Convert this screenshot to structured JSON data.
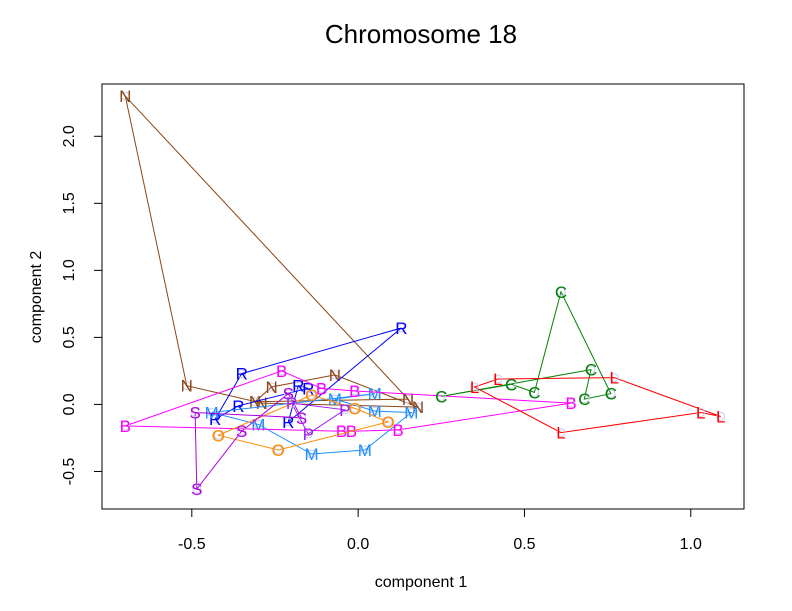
{
  "chart_data": {
    "type": "scatter",
    "title": "Chromosome 18",
    "xlabel": "component 1",
    "ylabel": "component 2",
    "xlim": [
      -0.77,
      1.16
    ],
    "ylim": [
      -0.78,
      2.39
    ],
    "xticks": [
      -0.5,
      0.0,
      0.5,
      1.0
    ],
    "xtick_labels": [
      "-0.5",
      "0.0",
      "0.5",
      "1.0"
    ],
    "yticks": [
      -0.5,
      0.0,
      0.5,
      1.0,
      1.5,
      2.0
    ],
    "ytick_labels": [
      "-0.5",
      "0.0",
      "0.5",
      "1.0",
      "1.5",
      "2.0"
    ],
    "grid": false,
    "legend": "none",
    "series": [
      {
        "name": "N",
        "color": "#8B4513",
        "closed": true,
        "points": [
          [
            -0.7,
            2.3
          ],
          [
            -0.515,
            0.14
          ],
          [
            -0.29,
            0.01
          ],
          [
            0.18,
            -0.02
          ],
          [
            -0.07,
            0.22
          ],
          [
            -0.26,
            0.13
          ],
          [
            -0.31,
            0.02
          ],
          [
            0.15,
            0.04
          ]
        ]
      },
      {
        "name": "R",
        "color": "#0000FF",
        "closed": true,
        "points": [
          [
            -0.35,
            0.23
          ],
          [
            0.13,
            0.57
          ],
          [
            -0.21,
            -0.13
          ],
          [
            -0.18,
            0.14
          ],
          [
            -0.15,
            0.12
          ],
          [
            -0.36,
            -0.01
          ],
          [
            -0.43,
            -0.11
          ]
        ]
      },
      {
        "name": "M",
        "color": "#1E90FF",
        "closed": true,
        "points": [
          [
            -0.44,
            -0.06
          ],
          [
            -0.3,
            -0.15
          ],
          [
            -0.14,
            -0.37
          ],
          [
            0.02,
            -0.34
          ],
          [
            0.16,
            -0.06
          ],
          [
            0.05,
            -0.05
          ],
          [
            -0.07,
            0.04
          ],
          [
            0.05,
            0.08
          ]
        ]
      },
      {
        "name": "B",
        "color": "#FF00FF",
        "closed": true,
        "points": [
          [
            -0.7,
            -0.16
          ],
          [
            -0.23,
            0.25
          ],
          [
            -0.11,
            0.12
          ],
          [
            -0.01,
            0.1
          ],
          [
            0.64,
            0.01
          ],
          [
            0.12,
            -0.19
          ],
          [
            -0.02,
            -0.2
          ],
          [
            -0.05,
            -0.2
          ]
        ]
      },
      {
        "name": "O",
        "color": "#FF8C00",
        "closed": true,
        "points": [
          [
            -0.42,
            -0.23
          ],
          [
            -0.24,
            -0.34
          ],
          [
            0.09,
            -0.13
          ],
          [
            -0.01,
            -0.03
          ],
          [
            -0.14,
            0.07
          ]
        ]
      },
      {
        "name": "S",
        "color": "#B000E0",
        "closed": true,
        "points": [
          [
            -0.49,
            -0.06
          ],
          [
            -0.485,
            -0.63
          ],
          [
            -0.35,
            -0.2
          ],
          [
            -0.21,
            0.08
          ],
          [
            -0.17,
            -0.1
          ]
        ]
      },
      {
        "name": "P",
        "color": "#A020F0",
        "closed": true,
        "points": [
          [
            -0.2,
            0.01
          ],
          [
            -0.15,
            -0.22
          ],
          [
            -0.04,
            -0.04
          ]
        ]
      },
      {
        "name": "C",
        "color": "#008000",
        "closed": true,
        "points": [
          [
            0.25,
            0.06
          ],
          [
            0.46,
            0.15
          ],
          [
            0.53,
            0.09
          ],
          [
            0.61,
            0.84
          ],
          [
            0.76,
            0.08
          ],
          [
            0.68,
            0.04
          ],
          [
            0.7,
            0.26
          ]
        ]
      },
      {
        "name": "L",
        "color": "#FF0000",
        "closed": true,
        "points": [
          [
            0.35,
            0.13
          ],
          [
            0.42,
            0.19
          ],
          [
            0.77,
            0.2
          ],
          [
            1.09,
            -0.09
          ],
          [
            1.03,
            -0.06
          ],
          [
            0.61,
            -0.21
          ]
        ]
      }
    ]
  }
}
